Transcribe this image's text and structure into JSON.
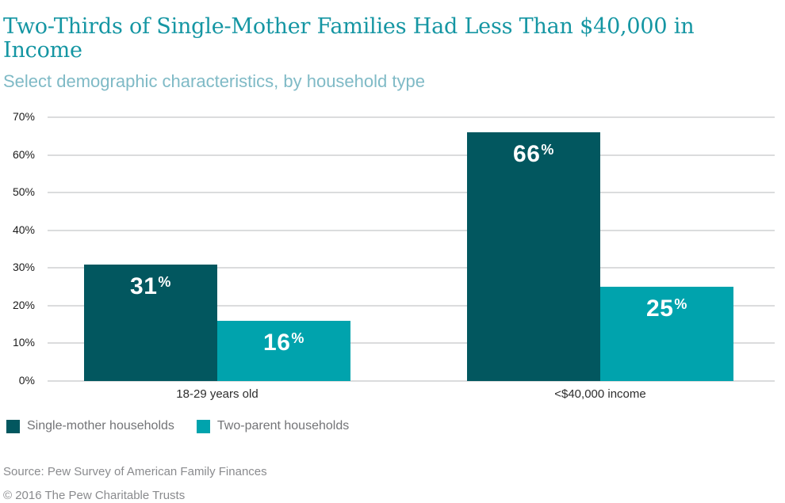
{
  "colors": {
    "title": "#1596a3",
    "subtitle": "#7fbac6",
    "single_mother": "#02575f",
    "two_parent": "#00a3ad",
    "gridline": "#dbdcdd"
  },
  "chart_data": {
    "type": "bar",
    "title": "Two-Thirds of Single-Mother Families Had Less Than $40,000 in Income",
    "subtitle": "Select demographic characteristics, by household type",
    "categories": [
      "18-29 years old",
      "<$40,000 income"
    ],
    "series": [
      {
        "name": "Single-mother households",
        "color": "#02575f",
        "values": [
          31,
          66
        ]
      },
      {
        "name": "Two-parent households",
        "color": "#00a3ad",
        "values": [
          16,
          25
        ]
      }
    ],
    "value_suffix": "%",
    "xlabel": "",
    "ylabel": "",
    "ylim": [
      0,
      70
    ],
    "yticks": [
      0,
      10,
      20,
      30,
      40,
      50,
      60,
      70
    ],
    "ytick_suffix": "%",
    "grid": true,
    "legend_position": "bottom-left"
  },
  "footer": {
    "source": "Source: Pew Survey of American Family Finances",
    "copyright": "© 2016 The Pew Charitable Trusts"
  }
}
